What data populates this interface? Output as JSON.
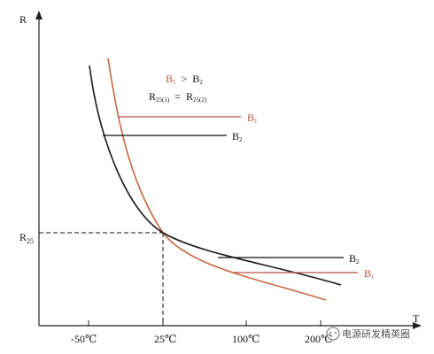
{
  "chart_data": {
    "type": "line",
    "xlabel": "T",
    "ylabel": "R",
    "x_ticks": [
      "-50℃",
      "25℃",
      "100℃",
      "200℃"
    ],
    "y_ref_label": "R25",
    "annotation_line1": "B1 > B2",
    "annotation_line2": "R25(1) = R25(2)",
    "series": [
      {
        "name": "B1",
        "color": "#c8673f"
      },
      {
        "name": "B2",
        "color": "#1a1a1a"
      }
    ],
    "series_labels": {
      "b1_top": "B1",
      "b2_top": "B2",
      "b2_bottom": "B2",
      "b1_bottom": "B1"
    }
  },
  "watermark": "电源研发精英圈"
}
